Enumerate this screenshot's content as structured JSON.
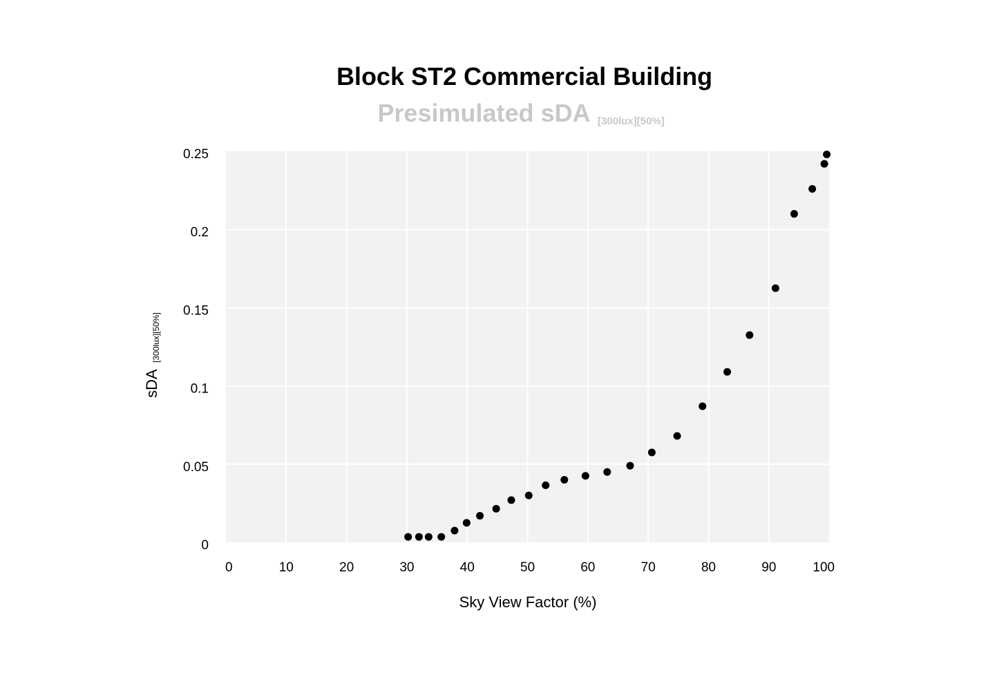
{
  "chart_data": {
    "type": "scatter",
    "title": "Block ST2 Commercial Building",
    "subtitle": {
      "main": "Presimulated sDA",
      "subscript": "[300lux][50%]"
    },
    "xlabel": "Sky View Factor (%)",
    "ylabel": {
      "main": "sDA",
      "subscript": "[300lux][50%]"
    },
    "xlim": [
      0,
      100
    ],
    "ylim": [
      0,
      0.25
    ],
    "xticks": [
      0,
      10,
      20,
      30,
      40,
      50,
      60,
      70,
      80,
      90,
      100
    ],
    "xtick_labels": [
      "0",
      "10",
      "20",
      "30",
      "40",
      "50",
      "60",
      "70",
      "80",
      "90",
      "100"
    ],
    "yticks": [
      0,
      0.05,
      0.1,
      0.15,
      0.2,
      0.25
    ],
    "ytick_labels": [
      "0",
      "0.05",
      "0.1",
      "0.15",
      "0.2",
      "0.25"
    ],
    "grid": true,
    "legend": "none",
    "colors": {
      "plot_background": "#f2f2f2",
      "grid": "#ffffff",
      "marker": "#000000",
      "subtitle": "#c8c8c8"
    },
    "series": [
      {
        "x": [
          30.2,
          32.0,
          33.6,
          35.7,
          37.9,
          39.9,
          42.1,
          44.8,
          47.3,
          50.2,
          53.0,
          56.1,
          59.6,
          63.2,
          67.0,
          70.6,
          74.8,
          79.0,
          83.1,
          86.8,
          91.1,
          94.2,
          97.2,
          99.2,
          99.6
        ],
        "y": [
          0.0035,
          0.0035,
          0.0035,
          0.0035,
          0.0075,
          0.0125,
          0.017,
          0.0215,
          0.027,
          0.03,
          0.0365,
          0.04,
          0.0425,
          0.045,
          0.049,
          0.0575,
          0.068,
          0.087,
          0.109,
          0.1325,
          0.1625,
          0.21,
          0.226,
          0.242,
          0.248
        ]
      }
    ]
  }
}
